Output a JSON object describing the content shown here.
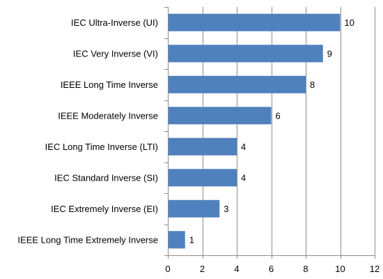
{
  "chart_data": {
    "type": "bar",
    "orientation": "horizontal",
    "categories": [
      "IEC Ultra-Inverse (UI)",
      "IEC Very Inverse (VI)",
      "IEEE Long Time Inverse",
      "IEEE Moderately Inverse",
      "IEC Long Time Inverse (LTI)",
      "IEC Standard Inverse (SI)",
      "IEC Extremely Inverse (EI)",
      "IEEE Long Time Extremely Inverse"
    ],
    "values": [
      10,
      9,
      8,
      6,
      4,
      4,
      3,
      1
    ],
    "value_labels": [
      "10",
      "9",
      "8",
      "6",
      "4",
      "4",
      "3",
      "1"
    ],
    "title": "",
    "xlabel": "",
    "ylabel": "",
    "xlim": [
      0,
      12
    ],
    "xticks": [
      0,
      2,
      4,
      6,
      8,
      10,
      12
    ],
    "xtick_labels": [
      "0",
      "2",
      "4",
      "6",
      "8",
      "10",
      "12"
    ],
    "grid": "vertical",
    "legend": "none",
    "bar_color": "#4F81BD",
    "grid_color": "#8C8C8C"
  }
}
